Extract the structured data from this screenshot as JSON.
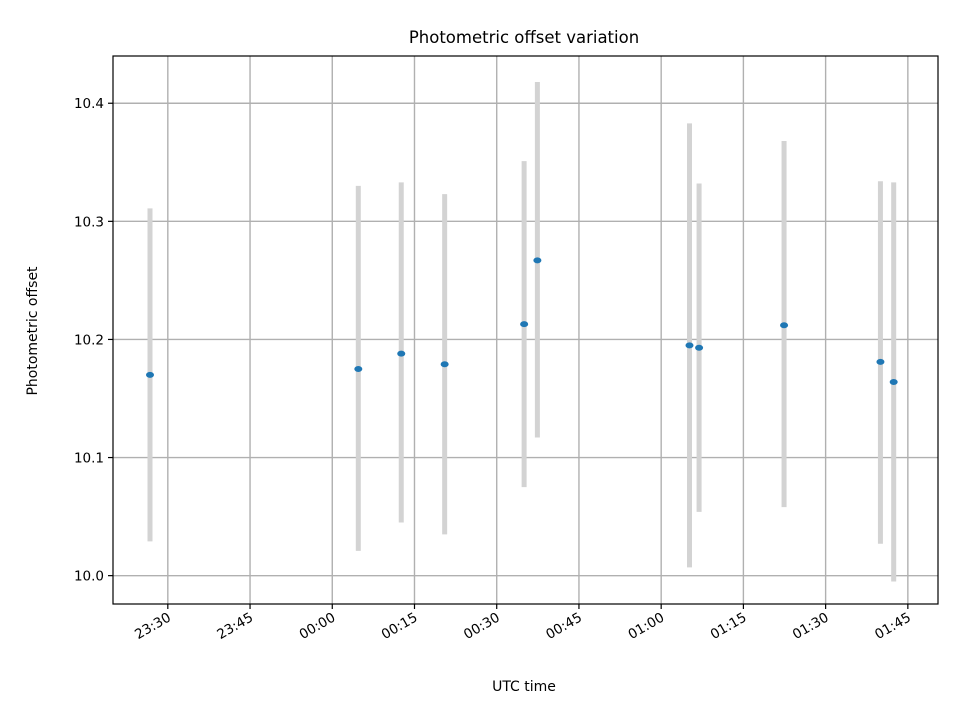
{
  "chart_data": {
    "type": "scatter",
    "title": "Photometric offset variation",
    "xlabel": "UTC time",
    "ylabel": "Photometric offset",
    "x_tick_labels": [
      "23:30",
      "23:45",
      "00:00",
      "00:15",
      "00:30",
      "00:45",
      "01:00",
      "01:15",
      "01:30",
      "01:45"
    ],
    "x_tick_minutes": [
      1410,
      1425,
      1440,
      1455,
      1470,
      1485,
      1500,
      1515,
      1530,
      1545
    ],
    "xlim_minutes": [
      1400,
      1550.5
    ],
    "y_ticks": [
      "10.0",
      "10.1",
      "10.2",
      "10.3",
      "10.4"
    ],
    "ylim": [
      9.976,
      10.44
    ],
    "grid": true,
    "point_color": "#1f77b4",
    "errorbar_color": "#d3d3d3",
    "points": [
      {
        "time": "23:26:45",
        "y": 10.17,
        "ylow": 10.029,
        "yhigh": 10.311
      },
      {
        "time": "00:04:45",
        "y": 10.175,
        "ylow": 10.021,
        "yhigh": 10.33
      },
      {
        "time": "00:12:35",
        "y": 10.188,
        "ylow": 10.045,
        "yhigh": 10.333
      },
      {
        "time": "00:20:30",
        "y": 10.179,
        "ylow": 10.035,
        "yhigh": 10.323
      },
      {
        "time": "00:35:00",
        "y": 10.213,
        "ylow": 10.075,
        "yhigh": 10.351
      },
      {
        "time": "00:37:25",
        "y": 10.267,
        "ylow": 10.117,
        "yhigh": 10.418
      },
      {
        "time": "01:05:10",
        "y": 10.195,
        "ylow": 10.007,
        "yhigh": 10.383
      },
      {
        "time": "01:06:55",
        "y": 10.193,
        "ylow": 10.054,
        "yhigh": 10.332
      },
      {
        "time": "01:22:25",
        "y": 10.212,
        "ylow": 10.058,
        "yhigh": 10.368
      },
      {
        "time": "01:40:00",
        "y": 10.181,
        "ylow": 10.027,
        "yhigh": 10.334
      },
      {
        "time": "01:42:25",
        "y": 10.164,
        "ylow": 9.995,
        "yhigh": 10.333
      }
    ]
  }
}
